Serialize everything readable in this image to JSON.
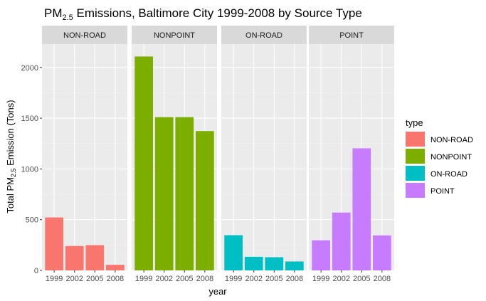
{
  "chart_data": {
    "type": "bar",
    "title": {
      "prefix": "PM",
      "subscript": "2.5",
      "suffix": " Emissions, Baltimore City 1999-2008 by Source Type"
    },
    "xlabel": "year",
    "ylabel": {
      "prefix": "Total PM",
      "subscript": "2.5",
      "suffix": " Emission (Tons)"
    },
    "ylim": [
      0,
      2230
    ],
    "yticks": [
      0,
      500,
      1000,
      1500,
      2000
    ],
    "ytick_labels": [
      "0",
      "500",
      "1000",
      "1500",
      "2000"
    ],
    "categories": [
      "1999",
      "2002",
      "2005",
      "2008"
    ],
    "grid": true,
    "legend": {
      "title": "type",
      "placement": "right"
    },
    "facets": [
      {
        "name": "NON-ROAD",
        "color": "#F8766D",
        "values": [
          522,
          241,
          249,
          55
        ]
      },
      {
        "name": "NONPOINT",
        "color": "#7CAE00",
        "values": [
          2108,
          1510,
          1510,
          1373
        ]
      },
      {
        "name": "ON-ROAD",
        "color": "#00BFC4",
        "values": [
          347,
          134,
          130,
          88
        ]
      },
      {
        "name": "POINT",
        "color": "#C77CFF",
        "values": [
          297,
          570,
          1203,
          345
        ]
      }
    ]
  }
}
